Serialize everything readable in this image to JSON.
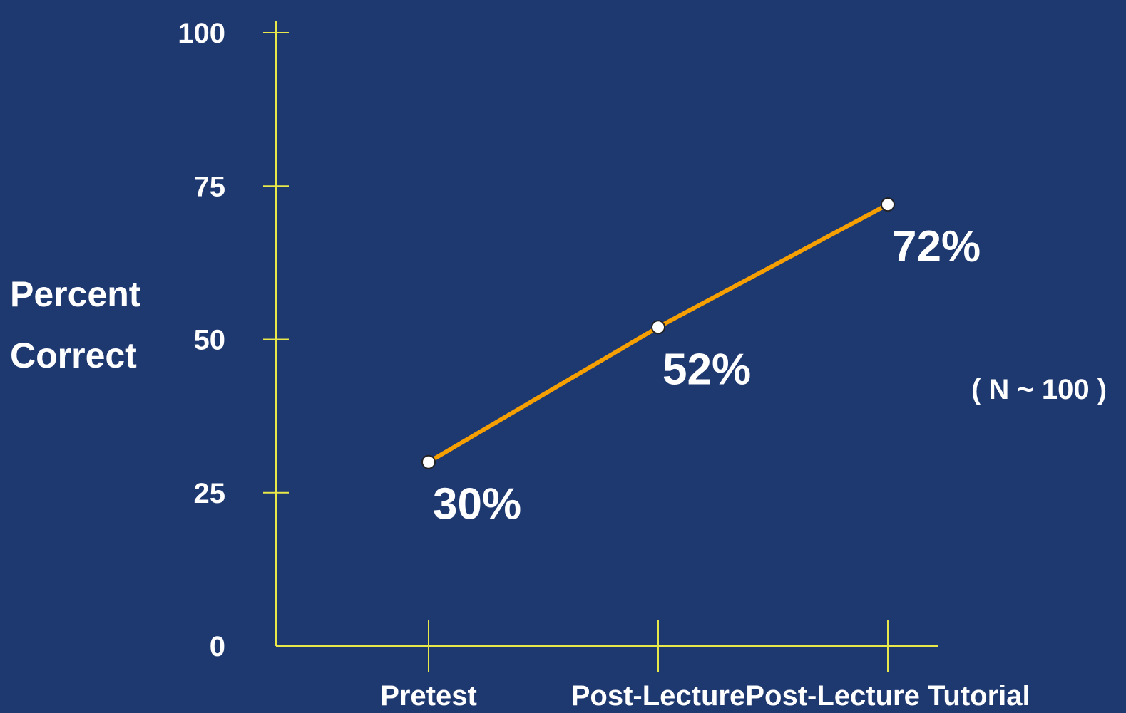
{
  "chart_data": {
    "type": "line",
    "categories": [
      "Pretest",
      "Post-Lecture",
      "Post-Lecture Tutorial"
    ],
    "series": [
      {
        "values": [
          30,
          52,
          72
        ],
        "data_labels": [
          "30%",
          "52%",
          "72%"
        ]
      }
    ],
    "ylabel": [
      "Percent",
      "Correct"
    ],
    "xlabel": "",
    "title": "",
    "ylim": [
      0,
      100
    ],
    "yticks": [
      0,
      25,
      50,
      75,
      100
    ],
    "ytick_labels": [
      "0",
      "25",
      "50",
      "75",
      "100"
    ],
    "annotation": "( N ~ 100 )",
    "grid": false,
    "legend": "none",
    "colors": {
      "background": "#1e3870",
      "axis": "#e8e84a",
      "line": "#f5a000",
      "marker_fill": "#ffffff",
      "marker_stroke": "#222222",
      "text": "#ffffff"
    }
  }
}
